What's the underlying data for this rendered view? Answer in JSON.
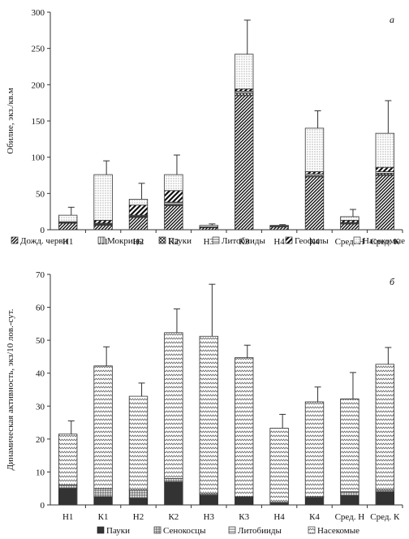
{
  "chart_data": [
    {
      "type": "bar",
      "stacked": true,
      "panel_label": "а",
      "ylabel": "Обилие, экз./кв.м",
      "ylim": [
        0,
        300
      ],
      "yticks": [
        0,
        50,
        100,
        150,
        200,
        250,
        300
      ],
      "categories": [
        "Н1",
        "К1",
        "Н2",
        "К2",
        "Н3",
        "К3",
        "Н4",
        "К4",
        "Сред. Н",
        "Сред. К"
      ],
      "series": [
        {
          "name": "Дожд. черви",
          "values": [
            9,
            6,
            17,
            33,
            3,
            185,
            4,
            73,
            8,
            75
          ]
        },
        {
          "name": "Мокрицы",
          "values": [
            1,
            1,
            1,
            1,
            0,
            0,
            0,
            0,
            1,
            1
          ]
        },
        {
          "name": "Пауки",
          "values": [
            0,
            1,
            1,
            1,
            0,
            4,
            0,
            2,
            0,
            2
          ]
        },
        {
          "name": "Литобииды",
          "values": [
            1,
            1,
            1,
            3,
            0,
            2,
            0,
            2,
            1,
            2
          ]
        },
        {
          "name": "Геофилы",
          "values": [
            0,
            4,
            14,
            16,
            1,
            3,
            1,
            3,
            3,
            6
          ]
        },
        {
          "name": "Насекомые",
          "values": [
            9,
            63,
            8,
            22,
            2,
            48,
            1,
            60,
            5,
            47
          ]
        }
      ],
      "error_bars": [
        31,
        95,
        64,
        103,
        8,
        289,
        7,
        164,
        28,
        178
      ]
    },
    {
      "type": "bar",
      "stacked": true,
      "panel_label": "б",
      "ylabel": "Динамическая активность, экз/10 лов.-сут.",
      "ylim": [
        0,
        70
      ],
      "yticks": [
        0,
        10,
        20,
        30,
        40,
        50,
        60,
        70
      ],
      "categories": [
        "Н1",
        "К1",
        "Н2",
        "К2",
        "Н3",
        "К3",
        "Н4",
        "К4",
        "Сред. Н",
        "Сред. К"
      ],
      "series": [
        {
          "name": "Пауки",
          "values": [
            5,
            2.5,
            2,
            7,
            3,
            2.3,
            0.5,
            2.2,
            2.8,
            4
          ]
        },
        {
          "name": "Сенокосцы",
          "values": [
            1,
            2.5,
            2.5,
            1,
            0.3,
            0.2,
            0.3,
            0.3,
            1.2,
            0.5
          ]
        },
        {
          "name": "Литобииды",
          "values": [
            0,
            0,
            0,
            0,
            0,
            0,
            0,
            0,
            0,
            0
          ]
        },
        {
          "name": "Насекомые",
          "values": [
            15.5,
            37.2,
            28.5,
            44.3,
            47.9,
            42.2,
            22.5,
            28.8,
            28.2,
            38.2
          ]
        }
      ],
      "error_bars": [
        25.5,
        48,
        37,
        59.5,
        67,
        48.5,
        27.5,
        35.8,
        40.2,
        47.8
      ]
    }
  ]
}
